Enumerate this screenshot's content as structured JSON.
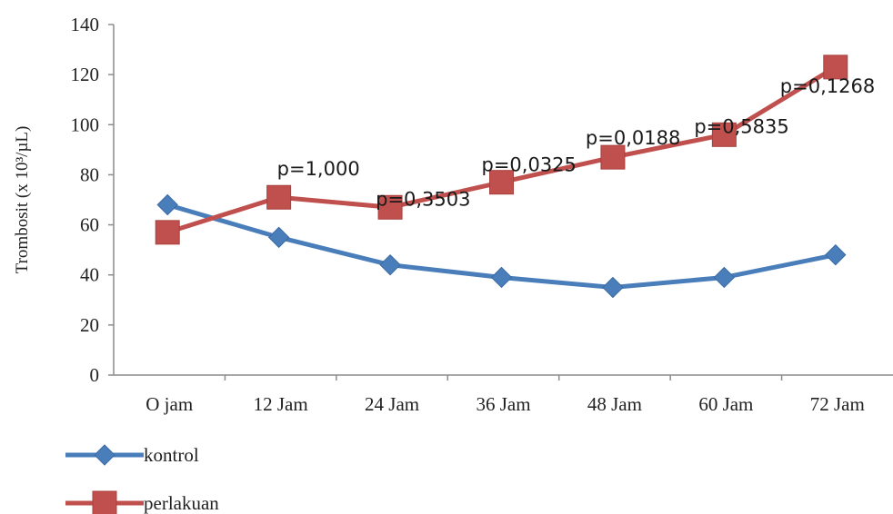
{
  "chart_data": {
    "type": "line",
    "ylabel": "Trombosit (x 10³/µL)",
    "xlabel": "",
    "ylim": [
      0,
      140
    ],
    "yticks": [
      0,
      20,
      40,
      60,
      80,
      100,
      120,
      140
    ],
    "categories": [
      "O jam",
      "12 Jam",
      "24 Jam",
      "36 Jam",
      "48  Jam",
      "60 Jam",
      "72 Jam"
    ],
    "series": [
      {
        "name": "kontrol",
        "values": [
          68,
          55,
          44,
          39,
          35,
          39,
          48
        ],
        "color": "#4a7ebb",
        "marker": "diamond"
      },
      {
        "name": "perlakuan",
        "values": [
          57,
          71,
          67,
          77,
          87,
          96,
          123
        ],
        "color": "#c0504d",
        "marker": "square"
      }
    ],
    "annotations": [
      "p=1,000",
      "p=0,3503",
      "p=0,0325",
      "p=0,0188",
      "p=0,5835",
      "p=0,1268"
    ],
    "grid": false,
    "legend_position": "bottom-left"
  }
}
